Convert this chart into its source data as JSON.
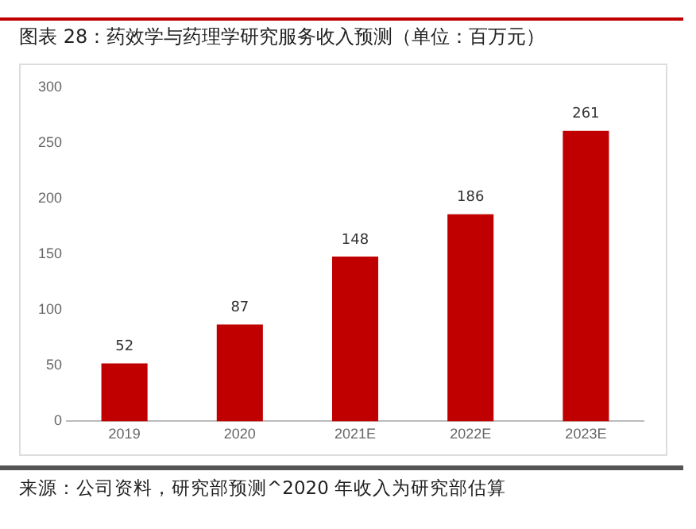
{
  "chart_data": {
    "type": "bar",
    "title": "图表 28：药效学与药理学研究服务收入预测（单位：百万元）",
    "categories": [
      "2019",
      "2020",
      "2021E",
      "2022E",
      "2023E"
    ],
    "values": [
      52,
      87,
      148,
      186,
      261
    ],
    "color": "#c00000",
    "ylim": [
      0,
      300
    ],
    "yticks": [
      0,
      50,
      100,
      150,
      200,
      250,
      300
    ],
    "grid": false,
    "data_labels": true,
    "annotations": [
      "来源：公司资料，研究部预测^2020 年收入为研究部估算"
    ]
  }
}
